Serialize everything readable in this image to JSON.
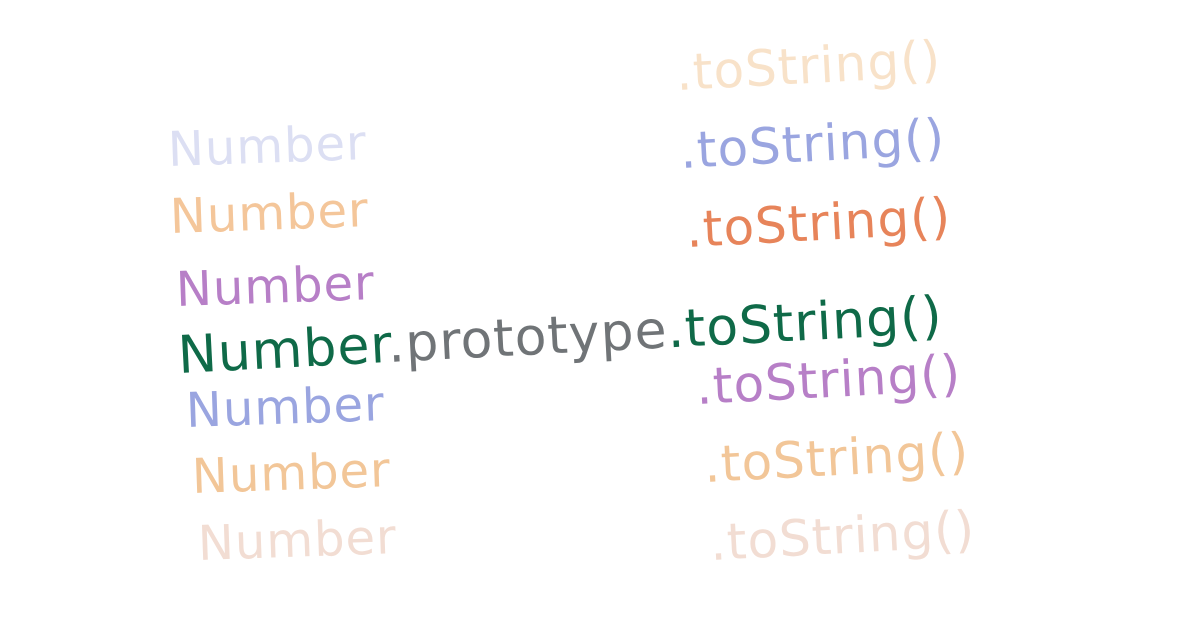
{
  "left_words": [
    {
      "text": "Number",
      "color": "#dcdff3"
    },
    {
      "text": "Number",
      "color": "#f4c69a"
    },
    {
      "text": "Number",
      "color": "#b77fc7"
    },
    {
      "text": "Number",
      "color": "#9aa5e0"
    },
    {
      "text": "Number",
      "color": "#f2c698"
    },
    {
      "text": "Number",
      "color": "#f2ddd3"
    }
  ],
  "right_words": [
    {
      "text": ".toString()",
      "color": "#f8e2c9"
    },
    {
      "text": ".toString()",
      "color": "#9aa5e0"
    },
    {
      "text": ".toString()",
      "color": "#e7845a"
    },
    {
      "text": ".toString()",
      "color": "#b77fc7"
    },
    {
      "text": ".toString()",
      "color": "#f2c698"
    },
    {
      "text": ".toString()",
      "color": "#f2ddd3"
    }
  ],
  "main_line": {
    "part1": "Number",
    "part1_color": "#0f6a48",
    "part2": ".prototype",
    "part2_color": "#707477",
    "part3": ".toString()",
    "part3_color": "#0f6a48"
  }
}
